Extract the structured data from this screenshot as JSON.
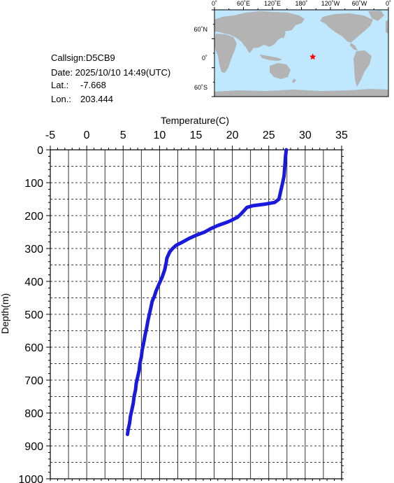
{
  "info": {
    "callsign": "Callsign:D5CB9",
    "date": "Date:  2025/10/10 14:49(UTC)",
    "lat_label": "Lat.:",
    "lat_value": "-7.668",
    "lon_label": "Lon.:",
    "lon_value": "203.444"
  },
  "map": {
    "lon_labels": [
      "0˚",
      "60˚E",
      "120˚E",
      "180˚",
      "120˚W",
      "60˚W",
      "0˚"
    ],
    "lat_labels": [
      "60˚N",
      "0˚",
      "60˚S"
    ],
    "ocean_color": "#bfe8ff",
    "land_color": "#b3b3b3",
    "marker_color": "#ff0000",
    "marker_icon": "star-icon",
    "station": {
      "lat": -7.668,
      "lon": 203.444
    }
  },
  "chart_data": {
    "type": "line",
    "xlabel": "Temperature(C)",
    "ylabel": "Depth(m)",
    "xlim": [
      -5,
      35
    ],
    "ylim": [
      1000,
      0
    ],
    "x_ticks": [
      "-5",
      "0",
      "5",
      "10",
      "15",
      "20",
      "25",
      "30",
      "35"
    ],
    "y_ticks": [
      "0",
      "100",
      "200",
      "300",
      "400",
      "500",
      "600",
      "700",
      "800",
      "900",
      "1000"
    ],
    "grid": true,
    "line_color": "#1a1adf",
    "series": [
      {
        "points": [
          [
            27.4,
            0
          ],
          [
            27.3,
            20
          ],
          [
            27.2,
            50
          ],
          [
            27.1,
            80
          ],
          [
            26.9,
            100
          ],
          [
            26.6,
            130
          ],
          [
            26.4,
            150
          ],
          [
            25.8,
            160
          ],
          [
            24.5,
            165
          ],
          [
            22.8,
            170
          ],
          [
            22.0,
            175
          ],
          [
            21.6,
            185
          ],
          [
            21.2,
            195
          ],
          [
            20.7,
            205
          ],
          [
            19.8,
            215
          ],
          [
            19.3,
            220
          ],
          [
            18.0,
            230
          ],
          [
            17.0,
            240
          ],
          [
            16.2,
            250
          ],
          [
            15.0,
            260
          ],
          [
            14.0,
            270
          ],
          [
            13.2,
            280
          ],
          [
            12.3,
            290
          ],
          [
            11.8,
            300
          ],
          [
            11.4,
            310
          ],
          [
            11.0,
            330
          ],
          [
            10.9,
            345
          ],
          [
            10.7,
            365
          ],
          [
            10.4,
            385
          ],
          [
            10.1,
            400
          ],
          [
            9.8,
            415
          ],
          [
            9.5,
            430
          ],
          [
            9.3,
            445
          ],
          [
            9.0,
            460
          ],
          [
            8.8,
            480
          ],
          [
            8.6,
            500
          ],
          [
            8.4,
            520
          ],
          [
            8.2,
            545
          ],
          [
            8.0,
            565
          ],
          [
            7.8,
            590
          ],
          [
            7.6,
            610
          ],
          [
            7.5,
            630
          ],
          [
            7.3,
            650
          ],
          [
            7.2,
            670
          ],
          [
            7.0,
            690
          ],
          [
            6.8,
            710
          ],
          [
            6.7,
            730
          ],
          [
            6.5,
            750
          ],
          [
            6.4,
            770
          ],
          [
            6.2,
            790
          ],
          [
            6.0,
            810
          ],
          [
            5.9,
            830
          ],
          [
            5.7,
            850
          ],
          [
            5.6,
            865
          ]
        ]
      }
    ]
  }
}
